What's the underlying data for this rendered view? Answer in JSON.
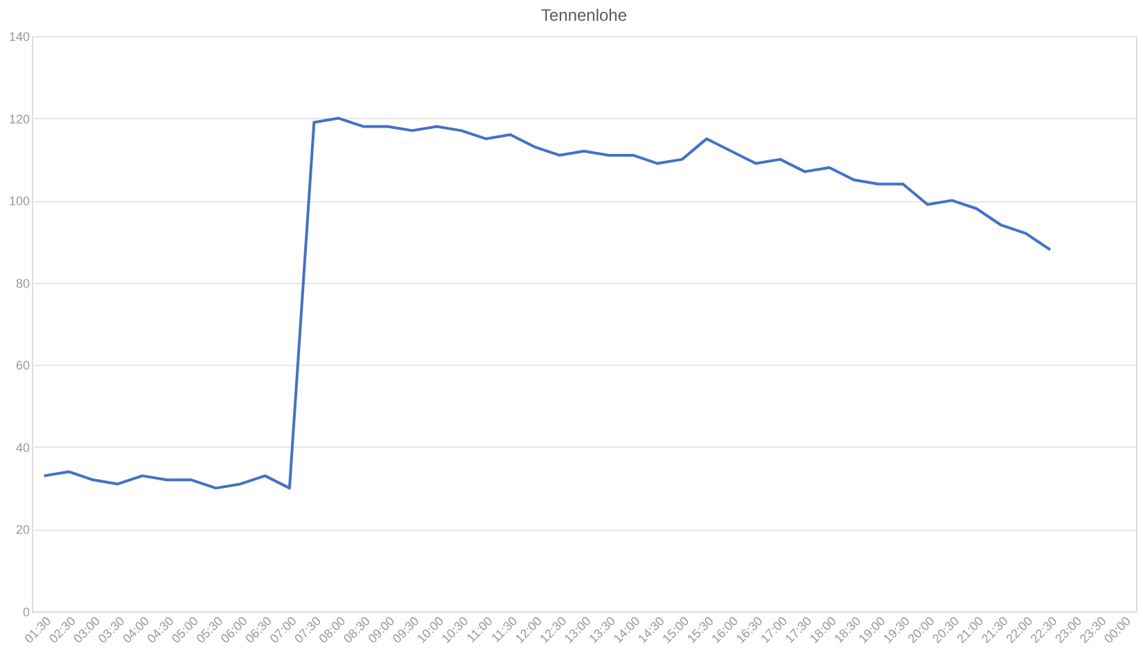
{
  "chart_data": {
    "type": "line",
    "title": "Tennenlohe",
    "categories": [
      "01:30",
      "02:30",
      "03:00",
      "03:30",
      "04:00",
      "04:30",
      "05:00",
      "05:30",
      "06:00",
      "06:30",
      "07:00",
      "07:30",
      "08:00",
      "08:30",
      "09:00",
      "09:30",
      "10:00",
      "10:30",
      "11:00",
      "11:30",
      "12:00",
      "12:30",
      "13:00",
      "13:30",
      "14:00",
      "14:30",
      "15:00",
      "15:30",
      "16:00",
      "16:30",
      "17:00",
      "17:30",
      "18:00",
      "18:30",
      "19:00",
      "19:30",
      "20:00",
      "20:30",
      "21:00",
      "21:30",
      "22:00",
      "22:30",
      "23:00",
      "23:30",
      "00:00"
    ],
    "series": [
      {
        "color": "#4472c4",
        "values": [
          33,
          34,
          32,
          31,
          33,
          32,
          32,
          30,
          31,
          33,
          30,
          119,
          120,
          118,
          118,
          117,
          118,
          117,
          115,
          116,
          113,
          111,
          112,
          111,
          111,
          109,
          110,
          115,
          112,
          109,
          110,
          107,
          108,
          105,
          104,
          104,
          99,
          100,
          98,
          94,
          92,
          88,
          null,
          null,
          null
        ]
      }
    ],
    "ylim": [
      0,
      140
    ],
    "yticks": [
      0,
      20,
      40,
      60,
      80,
      100,
      120,
      140
    ],
    "grid": "y",
    "legend": false,
    "marker": "none",
    "line_style": "solid"
  }
}
